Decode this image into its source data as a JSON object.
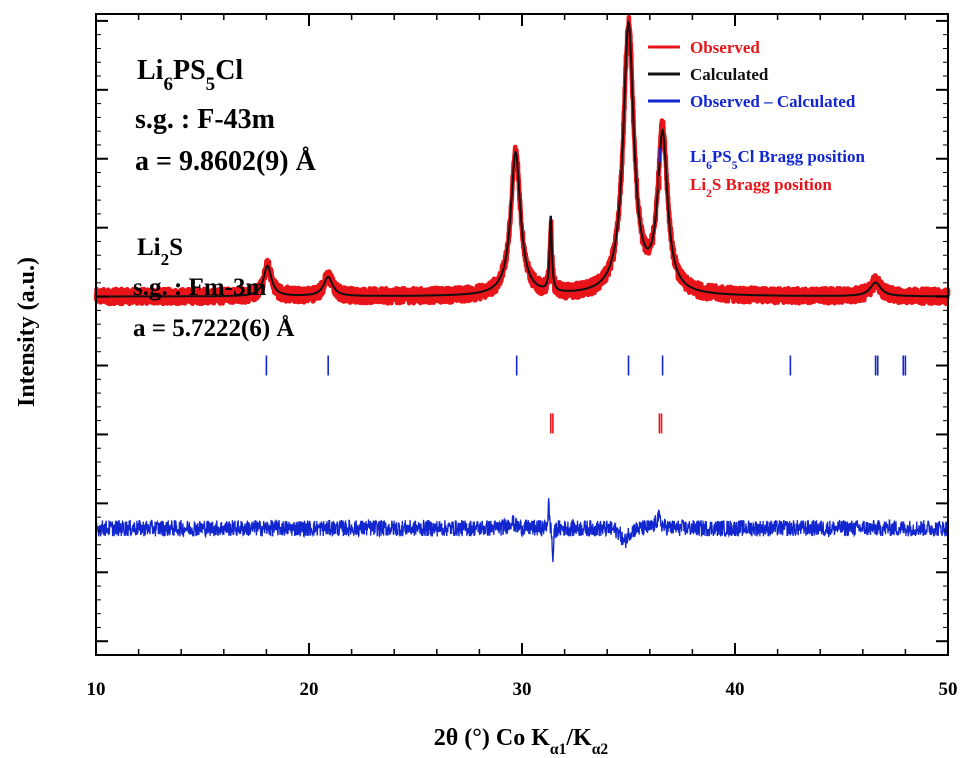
{
  "chart_data": {
    "type": "line",
    "title": "",
    "xlabel": "2θ (°)  Co Kα1/Kα2",
    "ylabel": "Intensity (a.u.)",
    "xlim": [
      10,
      50
    ],
    "ylim": [
      -2.6,
      2.05
    ],
    "xticks": [
      10,
      20,
      30,
      40,
      50
    ],
    "grid": false,
    "legend_position": "top-right",
    "phases": [
      {
        "name": "Li6PS5Cl",
        "space_group": "s.g. : F-43m",
        "lattice": "a = 9.8602(9) Å",
        "label_lines": [
          "Li6PS5Cl",
          "s.g. : F-43m",
          "a = 9.8602(9) Å"
        ]
      },
      {
        "name": "Li2S",
        "space_group": "s.g. : Fm-3m",
        "lattice": "a = 5.7222(6) Å",
        "label_lines": [
          "Li2S",
          "s.g. : Fm-3m",
          "a = 5.7222(6) Å"
        ]
      }
    ],
    "series": [
      {
        "name": "Observed",
        "color": "#e8141a",
        "style": "noisy-thick",
        "baseline": 0,
        "peaks": [
          {
            "x": 18.05,
            "y": 0.22,
            "w": 0.45
          },
          {
            "x": 20.9,
            "y": 0.14,
            "w": 0.5
          },
          {
            "x": 29.7,
            "y": 1.04,
            "w": 0.55
          },
          {
            "x": 31.35,
            "y": 0.47,
            "w": 0.12
          },
          {
            "x": 35.0,
            "y": 1.95,
            "w": 0.6
          },
          {
            "x": 36.6,
            "y": 1.18,
            "w": 0.55
          },
          {
            "x": 46.6,
            "y": 0.1,
            "w": 0.6
          }
        ]
      },
      {
        "name": "Calculated",
        "color": "#111111",
        "style": "line",
        "baseline": 0,
        "peaks": [
          {
            "x": 18.05,
            "y": 0.22,
            "w": 0.45
          },
          {
            "x": 20.9,
            "y": 0.14,
            "w": 0.5
          },
          {
            "x": 29.7,
            "y": 1.04,
            "w": 0.55
          },
          {
            "x": 31.35,
            "y": 0.55,
            "w": 0.12
          },
          {
            "x": 35.0,
            "y": 1.95,
            "w": 0.6
          },
          {
            "x": 36.6,
            "y": 1.14,
            "w": 0.55
          },
          {
            "x": 46.6,
            "y": 0.1,
            "w": 0.6
          }
        ]
      },
      {
        "name": "Observed – Calculated",
        "color": "#1226d0",
        "style": "noisy-thin",
        "baseline": -1.68,
        "features": [
          {
            "x": 31.25,
            "y": 0.18,
            "w": 0.08
          },
          {
            "x": 31.45,
            "y": -0.25,
            "w": 0.07
          },
          {
            "x": 29.5,
            "y": 0.05,
            "w": 0.3
          },
          {
            "x": 34.8,
            "y": -0.1,
            "w": 0.35
          },
          {
            "x": 36.4,
            "y": 0.08,
            "w": 0.25
          }
        ]
      }
    ],
    "bragg_positions": [
      {
        "name": "Li6PS5Cl Bragg position",
        "color": "#1226d0",
        "y": -0.5,
        "x": [
          18.0,
          20.9,
          29.75,
          35.0,
          36.6,
          42.6,
          46.6,
          46.7,
          47.9,
          48.0
        ]
      },
      {
        "name": "Li2S Bragg position",
        "color": "#e8141a",
        "y": -0.92,
        "x": [
          31.35,
          31.45,
          36.45,
          36.55
        ]
      }
    ],
    "legend": [
      {
        "label": "Observed",
        "color": "#e8141a",
        "marker": "line"
      },
      {
        "label": "Calculated",
        "color": "#111111",
        "marker": "line"
      },
      {
        "label": "Observed – Calculated",
        "color": "#1226d0",
        "marker": "line"
      },
      {
        "label": "Li6PS5Cl Bragg position",
        "color": "#1226d0",
        "marker": "tick"
      },
      {
        "label": "Li2S Bragg position",
        "color": "#e8141a",
        "marker": "tick"
      }
    ]
  }
}
